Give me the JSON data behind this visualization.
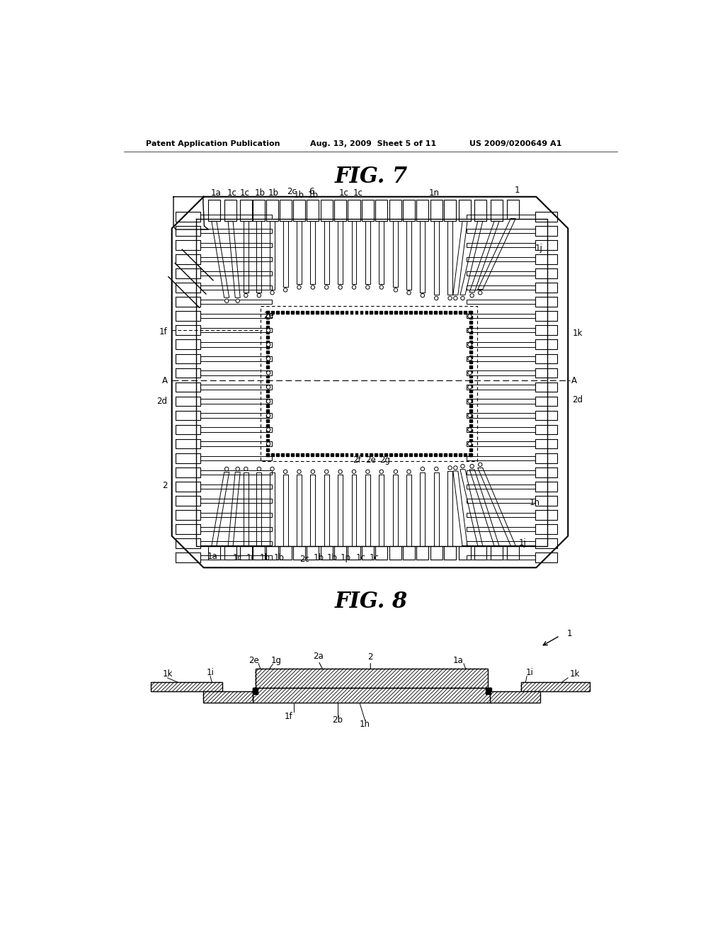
{
  "bg_color": "#ffffff",
  "line_color": "#000000",
  "header_left": "Patent Application Publication",
  "header_mid": "Aug. 13, 2009  Sheet 5 of 11",
  "header_right": "US 2009/0200649 A1",
  "fig7_title": "FIG. 7",
  "fig8_title": "FIG. 8"
}
